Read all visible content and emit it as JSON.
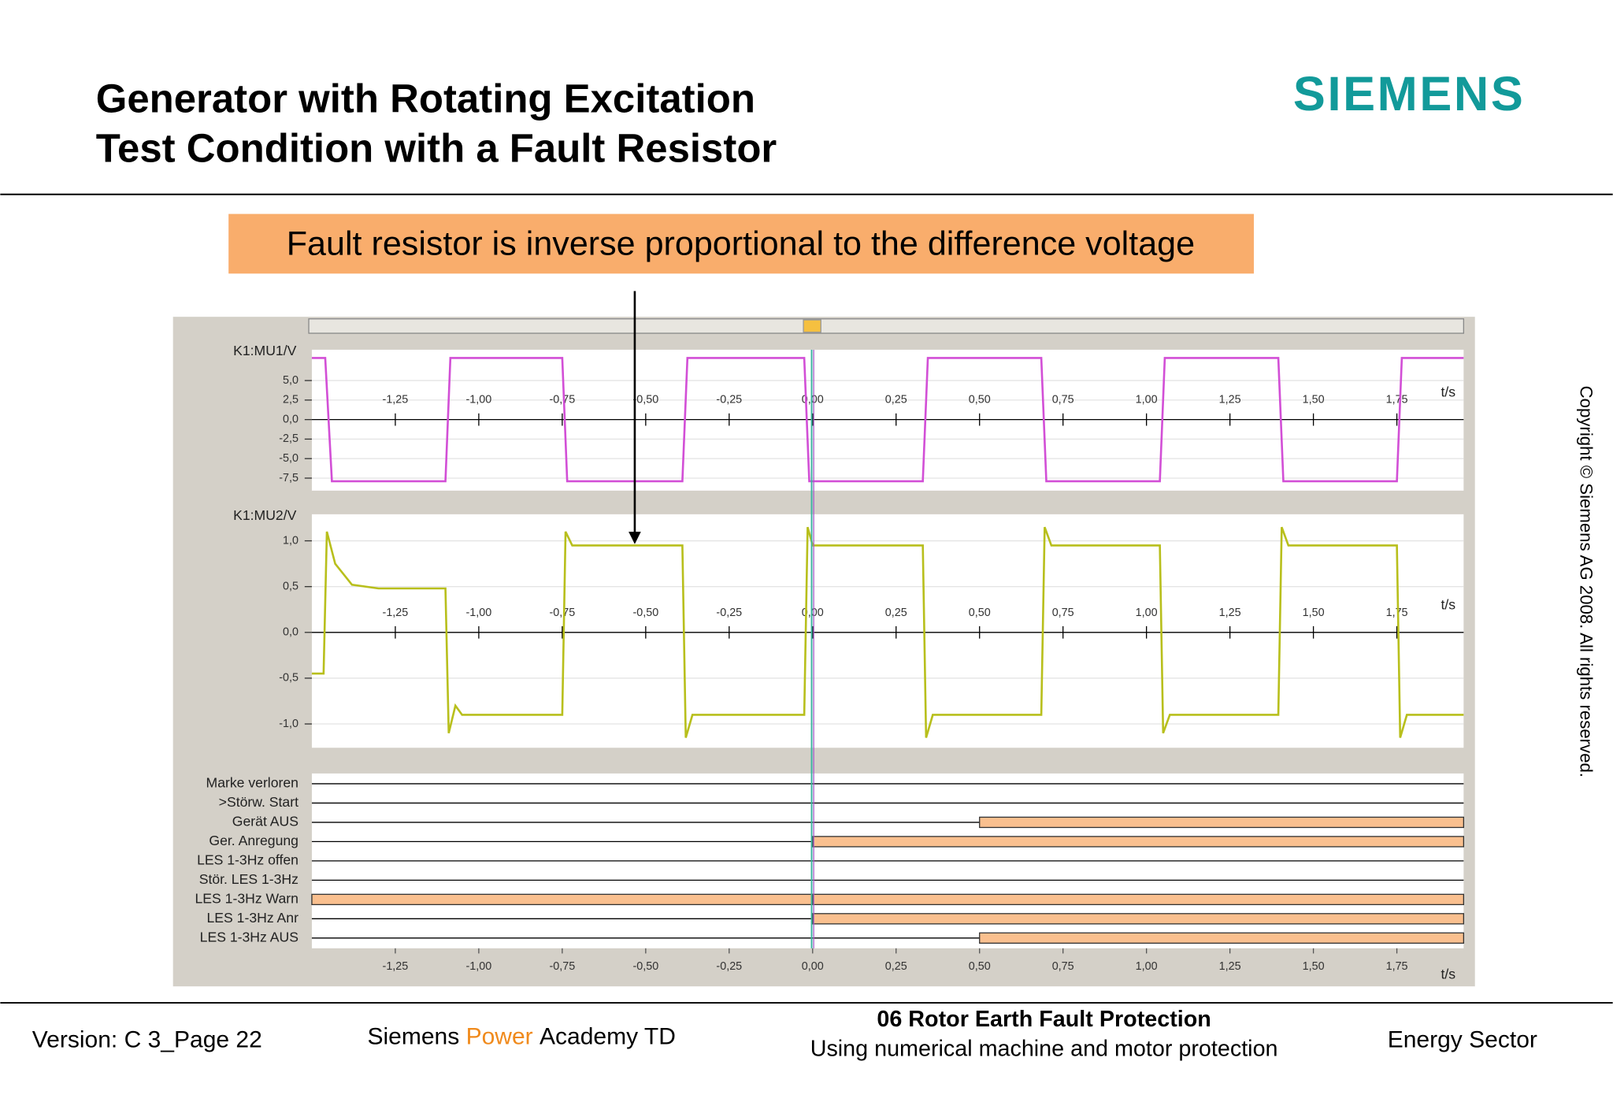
{
  "header": {
    "title_lines": [
      "Generator with Rotating Excitation",
      "Test Condition with a Fault Resistor"
    ],
    "logo": "SIEMENS"
  },
  "callout": "Fault resistor is inverse proportional to the difference voltage",
  "copyright": "Copyright © Siemens AG 2008. All rights reserved.",
  "footer": {
    "version": "Version: C 3_Page 22",
    "academy": [
      "Siemens",
      "Power",
      "Academy TD"
    ],
    "module_title": "06 Rotor Earth Fault Protection",
    "module_subtitle": "Using numerical machine and motor protection",
    "sector": "Energy Sector"
  },
  "chart_data": [
    {
      "type": "line",
      "title": "K1:MU1/V",
      "x_label": "t/s",
      "color": "#d24fd6",
      "xlim": [
        -1.5,
        1.95
      ],
      "xticks": [
        {
          "value": -1.25,
          "label": "-1,25"
        },
        {
          "value": -1,
          "label": "-1,00"
        },
        {
          "value": -0.75,
          "label": "-0,75"
        },
        {
          "value": -0.5,
          "label": "-0,50"
        },
        {
          "value": -0.25,
          "label": "-0,25"
        },
        {
          "value": 0,
          "label": "0,00"
        },
        {
          "value": 0.25,
          "label": "0,25"
        },
        {
          "value": 0.5,
          "label": "0,50"
        },
        {
          "value": 0.75,
          "label": "0,75"
        },
        {
          "value": 1,
          "label": "1,00"
        },
        {
          "value": 1.25,
          "label": "1,25"
        },
        {
          "value": 1.5,
          "label": "1,50"
        },
        {
          "value": 1.75,
          "label": "1,75"
        }
      ],
      "ylim": [
        -9.1,
        8.95
      ],
      "yticks": [
        {
          "value": 5,
          "label": "5,0"
        },
        {
          "value": 2.5,
          "label": "2,5"
        },
        {
          "value": 0,
          "label": "0,0"
        },
        {
          "value": -2.5,
          "label": "-2,5"
        },
        {
          "value": -5,
          "label": "-5,0"
        },
        {
          "value": -7.5,
          "label": "-7,5"
        }
      ],
      "x": [
        -1.5,
        -1.46,
        -1.44,
        -1.1,
        -1.085,
        -0.75,
        -0.735,
        -0.39,
        -0.375,
        -0.025,
        -0.01,
        0.33,
        0.345,
        0.685,
        0.7,
        1.04,
        1.055,
        1.395,
        1.41,
        1.75,
        1.765,
        1.95
      ],
      "values": [
        7.9,
        7.9,
        -7.9,
        -7.9,
        7.9,
        7.9,
        -7.9,
        -7.9,
        7.9,
        7.9,
        -7.9,
        -7.9,
        7.9,
        7.9,
        -7.9,
        -7.9,
        7.9,
        7.9,
        -7.9,
        -7.9,
        7.9,
        7.9
      ]
    },
    {
      "type": "line",
      "title": "K1:MU2/V",
      "x_label": "t/s",
      "color": "#b8bf1c",
      "xlim": [
        -1.5,
        1.95
      ],
      "xticks": [
        {
          "value": -1.25,
          "label": "-1,25"
        },
        {
          "value": -1,
          "label": "-1,00"
        },
        {
          "value": -0.75,
          "label": "-0,75"
        },
        {
          "value": -0.5,
          "label": "-0,50"
        },
        {
          "value": -0.25,
          "label": "-0,25"
        },
        {
          "value": 0,
          "label": "0,00"
        },
        {
          "value": 0.25,
          "label": "0,25"
        },
        {
          "value": 0.5,
          "label": "0,50"
        },
        {
          "value": 0.75,
          "label": "0,75"
        },
        {
          "value": 1,
          "label": "1,00"
        },
        {
          "value": 1.25,
          "label": "1,25"
        },
        {
          "value": 1.5,
          "label": "1,50"
        },
        {
          "value": 1.75,
          "label": "1,75"
        }
      ],
      "ylim": [
        -1.26,
        1.29
      ],
      "yticks": [
        {
          "value": 1,
          "label": "1,0"
        },
        {
          "value": 0.5,
          "label": "0,5"
        },
        {
          "value": 0,
          "label": "0,0"
        },
        {
          "value": -0.5,
          "label": "-0,5"
        },
        {
          "value": -1,
          "label": "-1,0"
        }
      ],
      "x": [
        -1.5,
        -1.465,
        -1.455,
        -1.43,
        -1.38,
        -1.3,
        -1.1,
        -1.09,
        -1.07,
        -1.05,
        -0.75,
        -0.74,
        -0.72,
        -0.39,
        -0.38,
        -0.36,
        -0.025,
        -0.015,
        0.0,
        0.33,
        0.34,
        0.36,
        0.685,
        0.695,
        0.715,
        1.04,
        1.05,
        1.07,
        1.395,
        1.405,
        1.425,
        1.75,
        1.76,
        1.78,
        1.95
      ],
      "values": [
        -0.45,
        -0.45,
        1.1,
        0.75,
        0.52,
        0.48,
        0.48,
        -1.1,
        -0.8,
        -0.9,
        -0.9,
        1.1,
        0.95,
        0.95,
        -1.15,
        -0.9,
        -0.9,
        1.15,
        0.95,
        0.95,
        -1.15,
        -0.9,
        -0.9,
        1.15,
        0.95,
        0.95,
        -1.1,
        -0.9,
        -0.9,
        1.15,
        0.95,
        0.95,
        -1.15,
        -0.9,
        -0.9
      ]
    },
    {
      "type": "binary",
      "x_label": "t/s",
      "color": "#fac08f",
      "xlim": [
        -1.5,
        1.95
      ],
      "xticks": [
        {
          "value": -1.25,
          "label": "-1,25"
        },
        {
          "value": -1,
          "label": "-1,00"
        },
        {
          "value": -0.75,
          "label": "-0,75"
        },
        {
          "value": -0.5,
          "label": "-0,50"
        },
        {
          "value": -0.25,
          "label": "-0,25"
        },
        {
          "value": 0,
          "label": "0,00"
        },
        {
          "value": 0.25,
          "label": "0,25"
        },
        {
          "value": 0.5,
          "label": "0,50"
        },
        {
          "value": 0.75,
          "label": "0,75"
        },
        {
          "value": 1,
          "label": "1,00"
        },
        {
          "value": 1.25,
          "label": "1,25"
        },
        {
          "value": 1.5,
          "label": "1,50"
        },
        {
          "value": 1.75,
          "label": "1,75"
        }
      ],
      "channels": [
        {
          "name": "Marke verloren",
          "intervals": []
        },
        {
          "name": ">Störw. Start",
          "intervals": []
        },
        {
          "name": "Gerät AUS",
          "intervals": [
            [
              0.5,
              1.95
            ]
          ]
        },
        {
          "name": "Ger. Anregung",
          "intervals": [
            [
              0,
              1.95
            ]
          ]
        },
        {
          "name": "LES 1-3Hz offen",
          "intervals": []
        },
        {
          "name": "Stör. LES 1-3Hz",
          "intervals": []
        },
        {
          "name": "LES 1-3Hz Warn",
          "intervals": [
            [
              -1.5,
              0
            ],
            [
              0,
              1.95
            ]
          ]
        },
        {
          "name": "LES 1-3Hz Anr",
          "intervals": [
            [
              0,
              1.95
            ]
          ]
        },
        {
          "name": "LES 1-3Hz AUS",
          "intervals": [
            [
              0.5,
              1.95
            ]
          ]
        }
      ]
    }
  ]
}
